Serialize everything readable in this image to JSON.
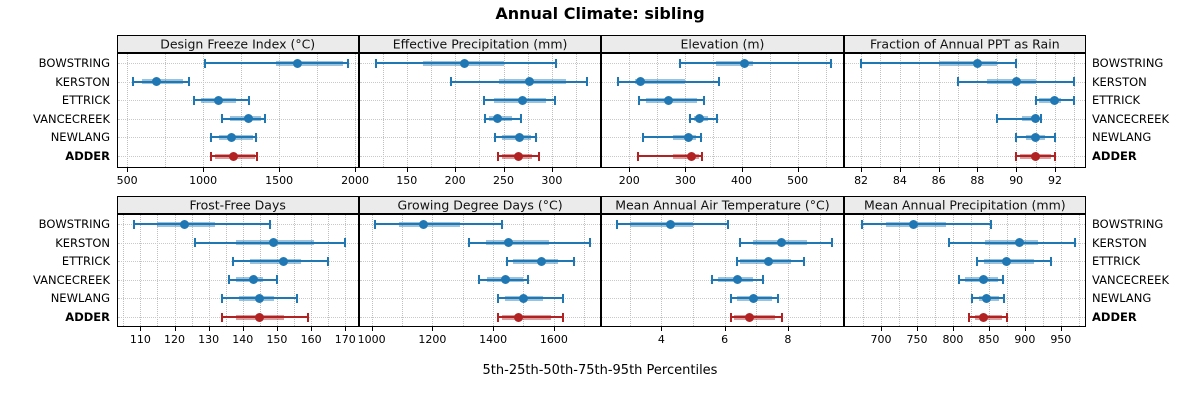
{
  "title": "Annual Climate: sibling",
  "caption": "5th-25th-50th-75th-95th Percentiles",
  "stations": [
    "BOWSTRING",
    "KERSTON",
    "ETTRICK",
    "VANCECREEK",
    "NEWLANG",
    "ADDER"
  ],
  "highlight_station": "ADDER",
  "percentile_labels": [
    "5th",
    "25th",
    "50th",
    "75th",
    "95th"
  ],
  "colors": {
    "series": "#1f78b4",
    "highlight": "#b22222",
    "strip_bg": "#ebebeb",
    "grid": "#bfbfbf",
    "border": "#000000",
    "background": "#ffffff"
  },
  "chart_data": [
    {
      "type": "dotplot-range",
      "title": "Design Freeze Index (°C)",
      "row": 0,
      "col": 0,
      "xlim": [
        430,
        2025
      ],
      "ticks": [
        500,
        1000,
        1500,
        2000
      ],
      "grid_step": 250,
      "series": [
        {
          "station": "BOWSTRING",
          "percentiles": [
            1015,
            1480,
            1620,
            1920,
            1955
          ]
        },
        {
          "station": "KERSTON",
          "percentiles": [
            540,
            600,
            690,
            870,
            910
          ]
        },
        {
          "station": "ETTRICK",
          "percentiles": [
            940,
            985,
            1100,
            1215,
            1300
          ]
        },
        {
          "station": "VANCECREEK",
          "percentiles": [
            1125,
            1180,
            1300,
            1380,
            1405
          ]
        },
        {
          "station": "NEWLANG",
          "percentiles": [
            1055,
            1105,
            1190,
            1330,
            1350
          ]
        },
        {
          "station": "ADDER",
          "percentiles": [
            1055,
            1075,
            1200,
            1340,
            1355
          ]
        }
      ]
    },
    {
      "type": "dotplot-range",
      "title": "Effective Precipitation (mm)",
      "row": 0,
      "col": 1,
      "xlim": [
        100.5,
        351
      ],
      "ticks": [
        150,
        200,
        250,
        300
      ],
      "grid_step": 25,
      "series": [
        {
          "station": "BOWSTRING",
          "percentiles": [
            118,
            167,
            210,
            250,
            304
          ]
        },
        {
          "station": "KERSTON",
          "percentiles": [
            196,
            245,
            277,
            315,
            336
          ]
        },
        {
          "station": "ETTRICK",
          "percentiles": [
            230,
            240,
            270,
            294,
            303
          ]
        },
        {
          "station": "VANCECREEK",
          "percentiles": [
            231,
            235,
            244,
            259,
            268
          ]
        },
        {
          "station": "NEWLANG",
          "percentiles": [
            241,
            248,
            266,
            278,
            284
          ]
        },
        {
          "station": "ADDER",
          "percentiles": [
            244,
            248,
            265,
            279,
            287
          ]
        }
      ]
    },
    {
      "type": "dotplot-range",
      "title": "Elevation (m)",
      "row": 0,
      "col": 2,
      "xlim": [
        150,
        582
      ],
      "ticks": [
        200,
        300,
        400,
        500
      ],
      "grid_step": 50,
      "series": [
        {
          "station": "BOWSTRING",
          "percentiles": [
            290,
            355,
            405,
            420,
            560
          ]
        },
        {
          "station": "KERSTON",
          "percentiles": [
            180,
            210,
            220,
            300,
            360
          ]
        },
        {
          "station": "ETTRICK",
          "percentiles": [
            217,
            230,
            270,
            320,
            333
          ]
        },
        {
          "station": "VANCECREEK",
          "percentiles": [
            308,
            315,
            326,
            340,
            356
          ]
        },
        {
          "station": "NEWLANG",
          "percentiles": [
            224,
            277,
            305,
            319,
            328
          ]
        },
        {
          "station": "ADDER",
          "percentiles": [
            215,
            278,
            310,
            324,
            330
          ]
        }
      ]
    },
    {
      "type": "dotplot-range",
      "title": "Fraction of Annual PPT as Rain",
      "row": 0,
      "col": 3,
      "xlim": [
        81.1,
        93.6
      ],
      "ticks": [
        82,
        84,
        86,
        88,
        90,
        92
      ],
      "grid_step": 1,
      "series": [
        {
          "station": "BOWSTRING",
          "percentiles": [
            82,
            86,
            88,
            89,
            90
          ]
        },
        {
          "station": "KERSTON",
          "percentiles": [
            87,
            88.5,
            90,
            91,
            93
          ]
        },
        {
          "station": "ETTRICK",
          "percentiles": [
            91,
            91.2,
            92,
            92.3,
            93
          ]
        },
        {
          "station": "VANCECREEK",
          "percentiles": [
            89,
            90.3,
            91,
            91.1,
            91.3
          ]
        },
        {
          "station": "NEWLANG",
          "percentiles": [
            90,
            90.5,
            91,
            91.5,
            92
          ]
        },
        {
          "station": "ADDER",
          "percentiles": [
            90,
            90.2,
            91,
            91.8,
            92
          ]
        }
      ]
    },
    {
      "type": "dotplot-range",
      "title": "Frost-Free Days",
      "row": 1,
      "col": 0,
      "xlim": [
        103,
        174
      ],
      "ticks": [
        110,
        120,
        130,
        140,
        150,
        160,
        170
      ],
      "grid_step": 5,
      "series": [
        {
          "station": "BOWSTRING",
          "percentiles": [
            108,
            115,
            123,
            132,
            148
          ]
        },
        {
          "station": "KERSTON",
          "percentiles": [
            126,
            138,
            149,
            161,
            170
          ]
        },
        {
          "station": "ETTRICK",
          "percentiles": [
            137,
            142,
            152,
            157,
            165
          ]
        },
        {
          "station": "VANCECREEK",
          "percentiles": [
            136,
            138,
            143,
            146,
            150
          ]
        },
        {
          "station": "NEWLANG",
          "percentiles": [
            134,
            139,
            145,
            149,
            156
          ]
        },
        {
          "station": "ADDER",
          "percentiles": [
            134,
            138,
            145,
            152,
            159
          ]
        }
      ]
    },
    {
      "type": "dotplot-range",
      "title": "Growing Degree Days (°C)",
      "row": 1,
      "col": 1,
      "xlim": [
        958,
        1756
      ],
      "ticks": [
        1000,
        1200,
        1400,
        1600
      ],
      "grid_step": 100,
      "series": [
        {
          "station": "BOWSTRING",
          "percentiles": [
            1010,
            1090,
            1170,
            1290,
            1430
          ]
        },
        {
          "station": "KERSTON",
          "percentiles": [
            1320,
            1375,
            1450,
            1585,
            1720
          ]
        },
        {
          "station": "ETTRICK",
          "percentiles": [
            1445,
            1465,
            1560,
            1615,
            1665
          ]
        },
        {
          "station": "VANCECREEK",
          "percentiles": [
            1355,
            1380,
            1440,
            1500,
            1515
          ]
        },
        {
          "station": "NEWLANG",
          "percentiles": [
            1415,
            1440,
            1500,
            1565,
            1630
          ]
        },
        {
          "station": "ADDER",
          "percentiles": [
            1415,
            1430,
            1485,
            1590,
            1630
          ]
        }
      ]
    },
    {
      "type": "dotplot-range",
      "title": "Mean Annual Air Temperature (°C)",
      "row": 1,
      "col": 2,
      "xlim": [
        2.1,
        9.76
      ],
      "ticks": [
        4,
        6,
        8
      ],
      "grid_step": 1,
      "series": [
        {
          "station": "BOWSTRING",
          "percentiles": [
            2.6,
            3.0,
            4.3,
            5.0,
            6.1
          ]
        },
        {
          "station": "KERSTON",
          "percentiles": [
            6.5,
            6.9,
            7.8,
            8.6,
            9.4
          ]
        },
        {
          "station": "ETTRICK",
          "percentiles": [
            6.4,
            6.5,
            7.4,
            8.1,
            8.5
          ]
        },
        {
          "station": "VANCECREEK",
          "percentiles": [
            5.6,
            5.8,
            6.4,
            6.9,
            7.2
          ]
        },
        {
          "station": "NEWLANG",
          "percentiles": [
            6.2,
            6.4,
            6.9,
            7.5,
            7.7
          ]
        },
        {
          "station": "ADDER",
          "percentiles": [
            6.2,
            6.3,
            6.8,
            7.6,
            7.8
          ]
        }
      ]
    },
    {
      "type": "dotplot-range",
      "title": "Mean Annual Precipitation (mm)",
      "row": 1,
      "col": 3,
      "xlim": [
        648,
        985
      ],
      "ticks": [
        700,
        750,
        800,
        850,
        900,
        950
      ],
      "grid_step": 25,
      "series": [
        {
          "station": "BOWSTRING",
          "percentiles": [
            673,
            707,
            745,
            790,
            853
          ]
        },
        {
          "station": "KERSTON",
          "percentiles": [
            794,
            844,
            892,
            918,
            970
          ]
        },
        {
          "station": "ETTRICK",
          "percentiles": [
            834,
            843,
            874,
            913,
            937
          ]
        },
        {
          "station": "VANCECREEK",
          "percentiles": [
            809,
            817,
            842,
            863,
            870
          ]
        },
        {
          "station": "NEWLANG",
          "percentiles": [
            827,
            836,
            846,
            864,
            871
          ]
        },
        {
          "station": "ADDER",
          "percentiles": [
            822,
            830,
            842,
            868,
            875
          ]
        }
      ]
    }
  ]
}
